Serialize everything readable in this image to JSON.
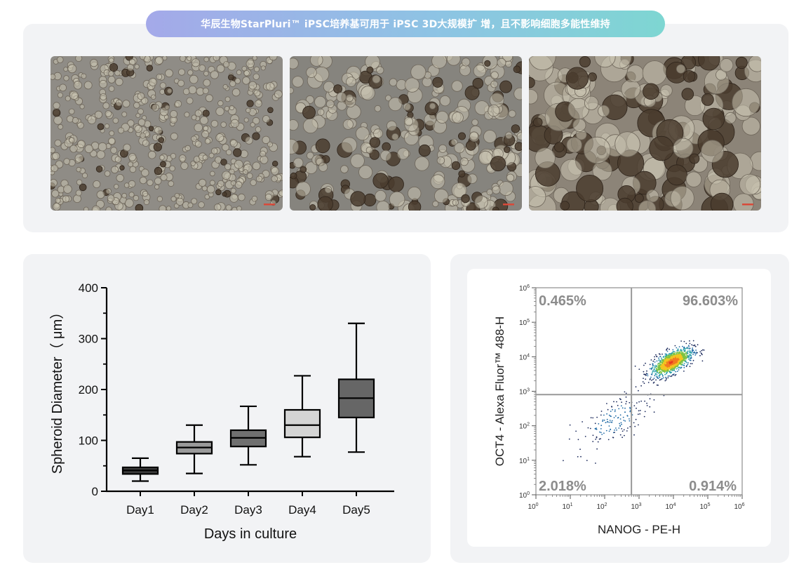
{
  "banner": {
    "title": "华辰生物StarPluri™ iPSC培养基可用于 iPSC 3D大规模扩 增，且不影响细胞多能性维持",
    "colors": [
      "#a4a9e9",
      "#7ed6d2"
    ]
  },
  "micrographs": [
    {
      "label": "micrograph-small-spheroids",
      "tone": "#8f8c86"
    },
    {
      "label": "micrograph-medium-spheroids",
      "tone": "#86847e"
    },
    {
      "label": "micrograph-large-spheroids",
      "tone": "#8c8478"
    }
  ],
  "chart_data": [
    {
      "type": "box",
      "title": "",
      "xlabel": "Days in culture",
      "ylabel": "Spheroid Diameter（ μm）",
      "ylim": [
        0,
        400
      ],
      "yticks": [
        "0",
        "100",
        "200",
        "300",
        "400"
      ],
      "categories": [
        "Day1",
        "Day2",
        "Day3",
        "Day4",
        "Day5"
      ],
      "boxes": [
        {
          "min": 20,
          "q1": 34,
          "median": 41,
          "q3": 47,
          "max": 65,
          "fill": "#3c3c3c"
        },
        {
          "min": 35,
          "q1": 74,
          "median": 86,
          "q3": 97,
          "max": 130,
          "fill": "#9a9a9a"
        },
        {
          "min": 52,
          "q1": 88,
          "median": 105,
          "q3": 120,
          "max": 167,
          "fill": "#707070"
        },
        {
          "min": 68,
          "q1": 106,
          "median": 130,
          "q3": 160,
          "max": 227,
          "fill": "#d4d4d4"
        },
        {
          "min": 77,
          "q1": 145,
          "median": 183,
          "q3": 220,
          "max": 330,
          "fill": "#666666"
        }
      ]
    },
    {
      "type": "scatter",
      "subtype": "flow-cytometry-density",
      "xlabel": "NANOG - PE-H",
      "ylabel": "OCT4 - Alexa Fluor™ 488-H",
      "xscale": "log",
      "yscale": "log",
      "xlim": [
        1,
        1000000
      ],
      "ylim": [
        1,
        1000000
      ],
      "tick_bases": [
        "10",
        "10",
        "10",
        "10",
        "10",
        "10",
        "10"
      ],
      "tick_exponents": [
        "0",
        "1",
        "2",
        "3",
        "4",
        "5",
        "6"
      ],
      "gate": {
        "x": 600,
        "y": 800
      },
      "quadrants": {
        "upper_left": "0.465%",
        "upper_right": "96.603%",
        "lower_left": "2.018%",
        "lower_right": "0.914%"
      },
      "population_centers": [
        {
          "x": 9000,
          "y": 7000,
          "spread": 0.35,
          "count": 900
        },
        {
          "x": 200,
          "y": 150,
          "spread": 0.45,
          "count": 160
        }
      ]
    }
  ]
}
